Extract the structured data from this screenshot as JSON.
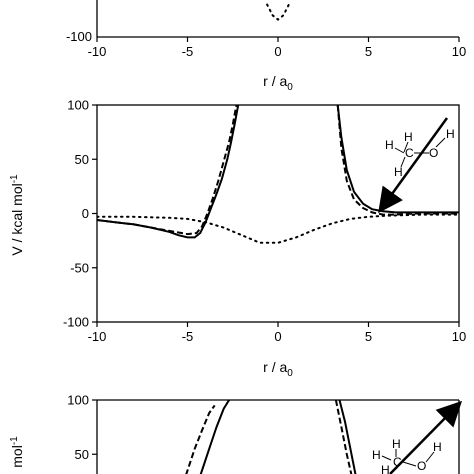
{
  "chart_data": [
    {
      "type": "line",
      "panel": "top (partially visible)",
      "xlim": [
        -10,
        10
      ],
      "ylim": [
        -100,
        100
      ],
      "xticks": [
        -10,
        -5,
        0,
        5,
        10
      ],
      "yticks_visible": [
        -100
      ],
      "xlabel": "r / a",
      "xlabel_sub": "0",
      "series": [
        {
          "style": "dotted",
          "x": [
            -0.6,
            -0.3,
            0.0,
            0.3,
            0.6
          ],
          "y": [
            -70,
            -80,
            -84,
            -80,
            -70
          ]
        }
      ]
    },
    {
      "type": "line",
      "panel": "middle",
      "xlim": [
        -10,
        10
      ],
      "ylim": [
        -100,
        100
      ],
      "xticks": [
        -10,
        -5,
        0,
        5,
        10
      ],
      "yticks": [
        -100,
        -50,
        0,
        50,
        100
      ],
      "xlabel": "r / a",
      "xlabel_sub": "0",
      "ylabel": "V / kcal mol",
      "ylabel_sup": "-1",
      "series": [
        {
          "style": "solid",
          "x": [
            -10,
            -9,
            -8,
            -7,
            -6,
            -5.5,
            -5,
            -4.6,
            -4.3,
            -4.0,
            -3.7,
            -3.4,
            -3.1,
            -2.8,
            -2.6,
            -2.4,
            -2.2
          ],
          "y": [
            -6,
            -8,
            -10,
            -13,
            -17,
            -20,
            -22,
            -22,
            -18,
            -8,
            5,
            18,
            32,
            50,
            65,
            82,
            100
          ]
        },
        {
          "style": "solid",
          "x": [
            3.3,
            3.5,
            3.8,
            4.2,
            4.7,
            5.2,
            5.8,
            6.5,
            7.5,
            8.5,
            10
          ],
          "y": [
            100,
            70,
            40,
            20,
            9,
            4,
            2,
            1,
            1,
            1,
            1
          ]
        },
        {
          "style": "dashed",
          "x": [
            -10,
            -9,
            -8,
            -7,
            -6,
            -5,
            -4.5,
            -4.2,
            -3.9,
            -3.6,
            -3.3,
            -3.0,
            -2.7,
            -2.5,
            -2.3
          ],
          "y": [
            -6,
            -8,
            -10,
            -13,
            -16,
            -19,
            -18,
            -12,
            0,
            14,
            30,
            48,
            66,
            82,
            100
          ]
        },
        {
          "style": "dashed",
          "x": [
            3.3,
            3.5,
            3.8,
            4.2,
            4.7,
            5.2,
            5.8,
            6.5,
            7.5,
            8.5,
            10
          ],
          "y": [
            100,
            60,
            30,
            13,
            5,
            1,
            -1,
            -1,
            0,
            0,
            0
          ]
        },
        {
          "style": "dotted",
          "x": [
            -10,
            -8,
            -6,
            -5,
            -4,
            -3,
            -2,
            -1,
            0,
            1,
            2,
            3,
            4,
            5,
            6,
            8,
            10
          ],
          "y": [
            -3,
            -3,
            -4,
            -5,
            -8,
            -13,
            -20,
            -27,
            -27,
            -22,
            -15,
            -9,
            -5,
            -3,
            -2,
            -1,
            -1
          ]
        }
      ],
      "annotation": {
        "type": "arrow-with-molecule",
        "atoms": [
          "H",
          "H",
          "C",
          "O",
          "H",
          "H"
        ]
      }
    },
    {
      "type": "line",
      "panel": "bottom (partially visible)",
      "xlim": [
        -10,
        10
      ],
      "ylim": [
        -100,
        100
      ],
      "yticks_visible": [
        50,
        100
      ],
      "ylabel_fragment": "mol",
      "ylabel_sup": "-1",
      "series": [
        {
          "style": "solid",
          "x": [
            -4.6,
            -4.2,
            -3.8,
            -3.4,
            -3.0,
            -2.7
          ],
          "y": [
            15,
            35,
            55,
            75,
            92,
            100
          ]
        },
        {
          "style": "dashed",
          "x": [
            -5.4,
            -5.0,
            -4.6,
            -4.2,
            -3.8,
            -3.5
          ],
          "y": [
            15,
            35,
            55,
            72,
            88,
            95
          ]
        },
        {
          "style": "solid",
          "x": [
            3.4,
            3.7,
            4.0,
            4.3
          ],
          "y": [
            100,
            80,
            55,
            30
          ]
        },
        {
          "style": "dashed",
          "x": [
            3.2,
            3.5,
            3.8,
            4.1
          ],
          "y": [
            100,
            75,
            50,
            28
          ]
        }
      ],
      "annotation": {
        "type": "arrow-with-molecule",
        "atoms": [
          "H",
          "H",
          "C",
          "O",
          "H",
          "H"
        ]
      }
    }
  ]
}
